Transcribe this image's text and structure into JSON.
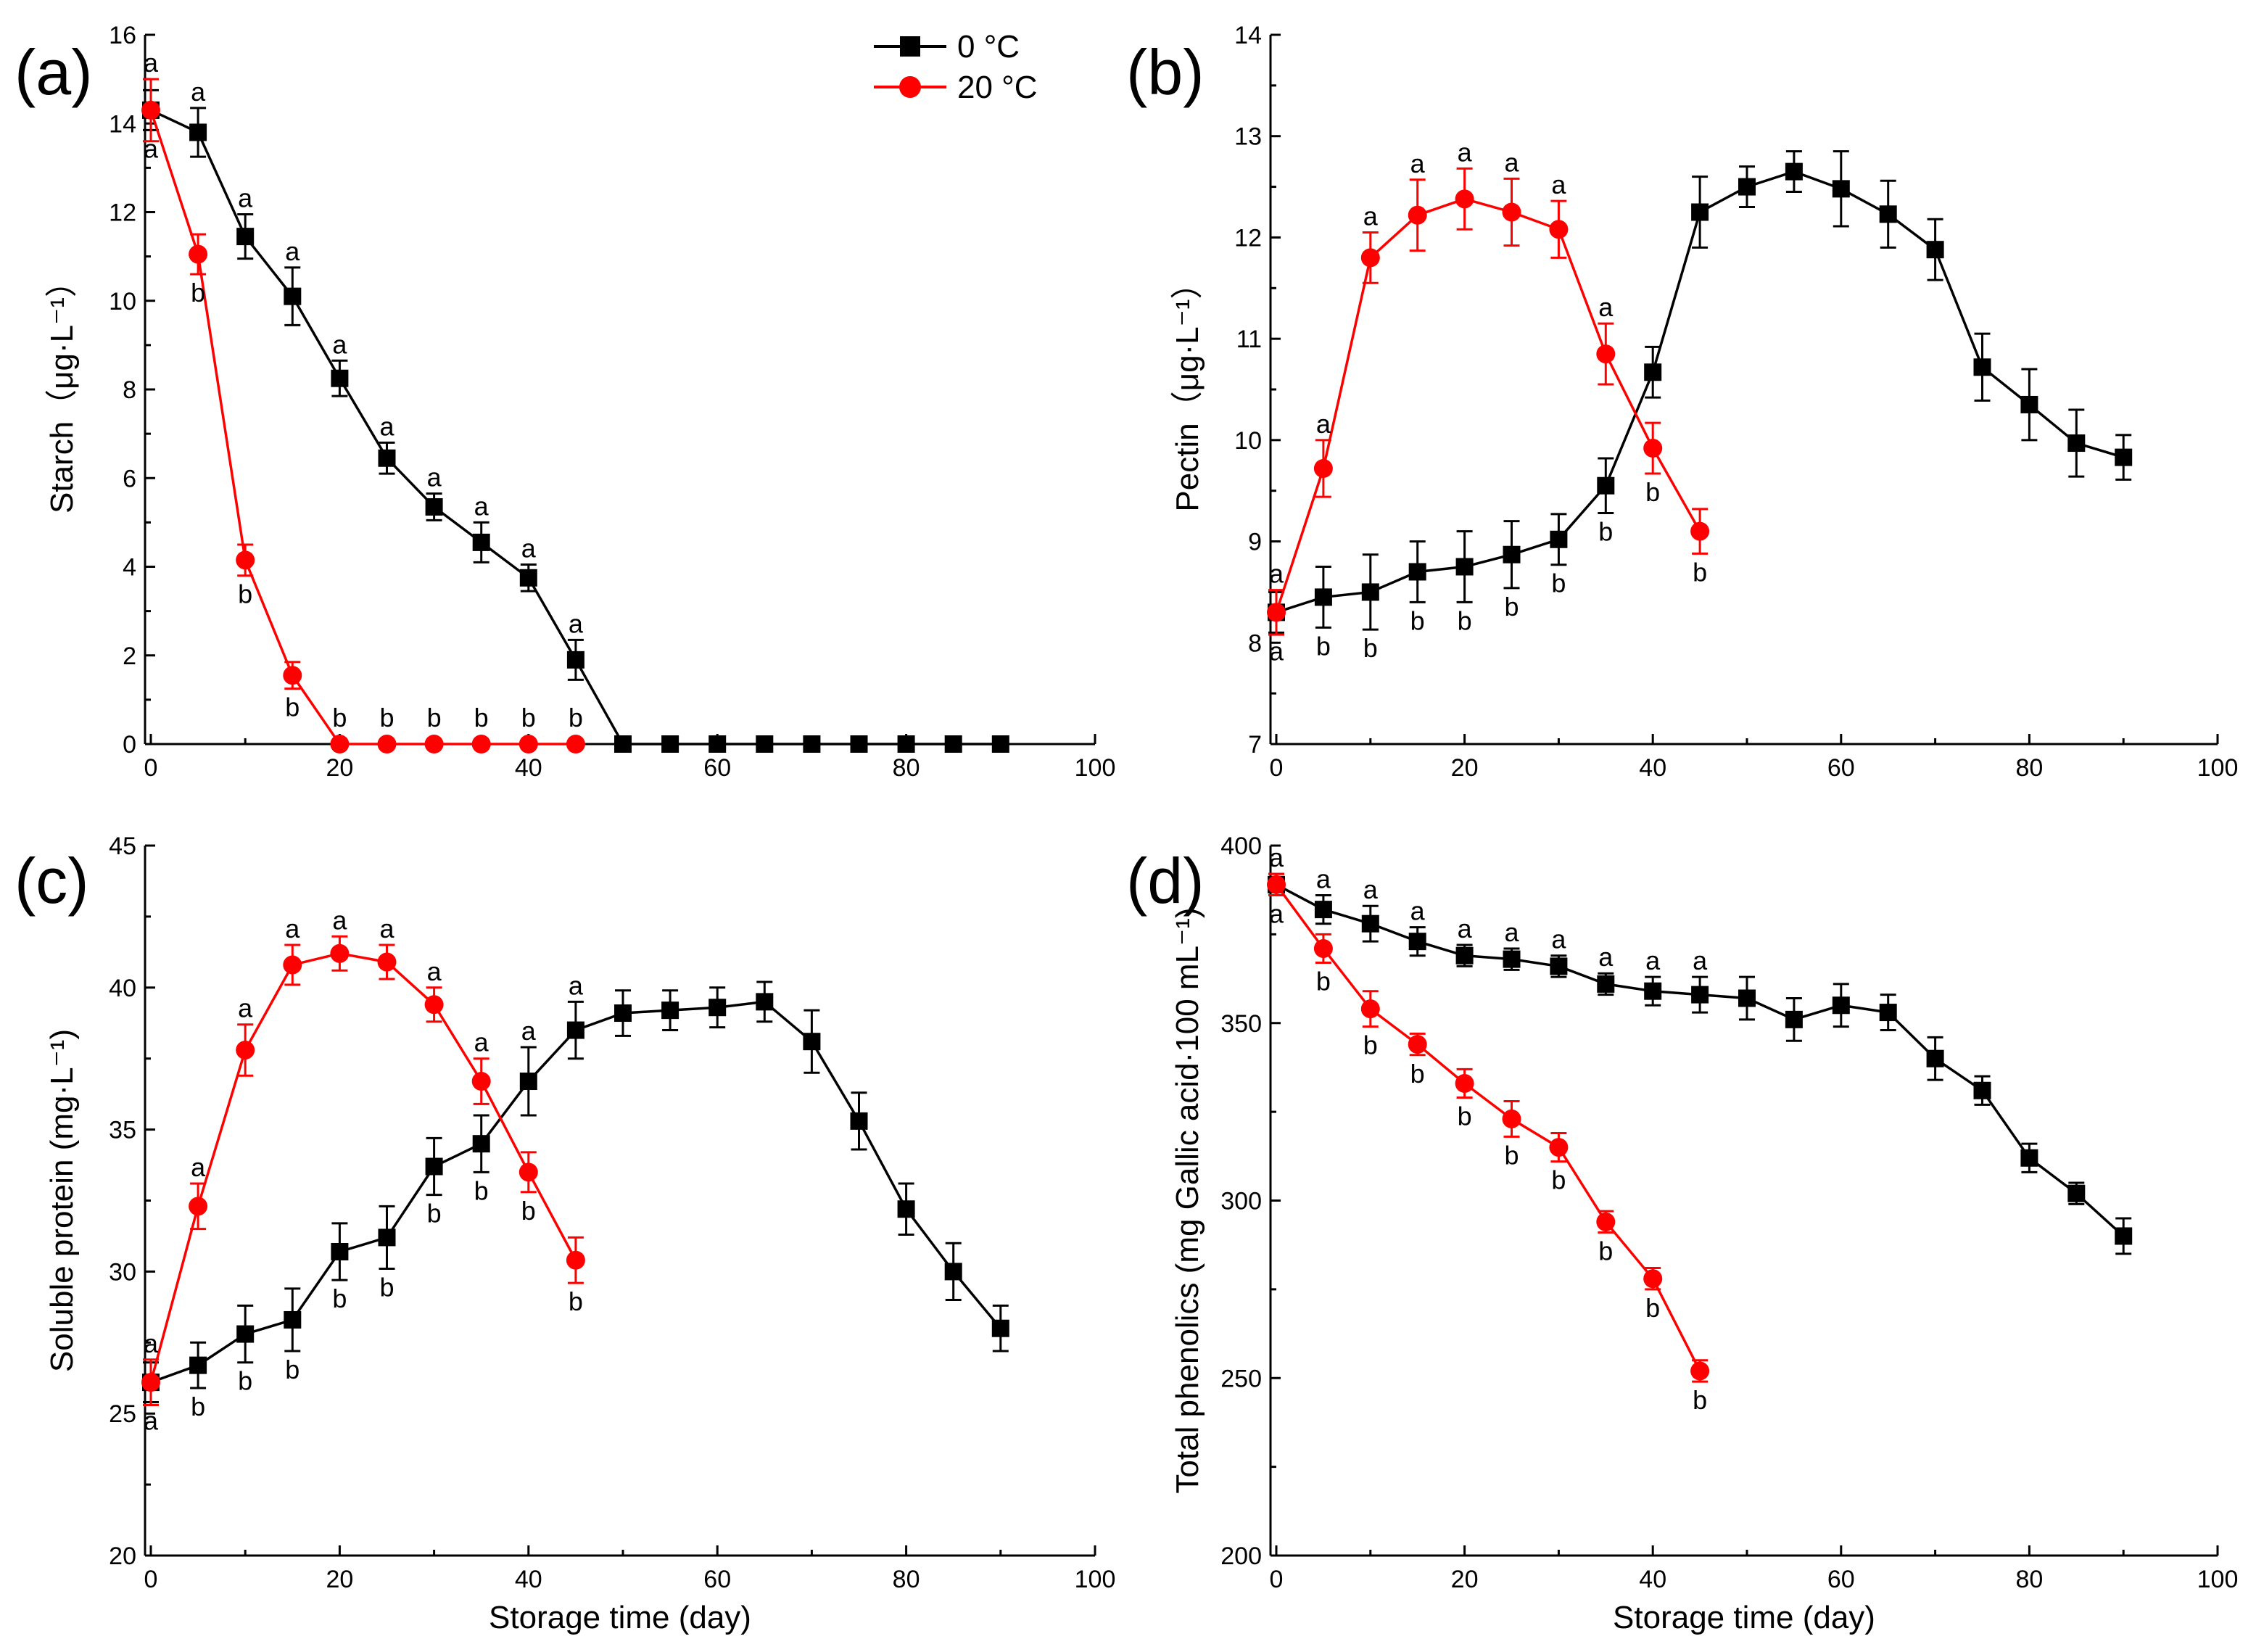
{
  "figure": {
    "legend": [
      {
        "label": "0  °C",
        "color": "#000000",
        "marker": "square"
      },
      {
        "label": "20  °C",
        "color": "#ff0000",
        "marker": "circle"
      }
    ]
  },
  "chart_data": [
    {
      "type": "line",
      "panel": "(a)",
      "ylabel": "Starch（μg·L⁻¹）",
      "xlabel": "",
      "xlim": [
        0,
        100
      ],
      "ylim": [
        0,
        16
      ],
      "xticks": [
        0,
        20,
        40,
        60,
        80,
        100
      ],
      "yticks": [
        0,
        2,
        4,
        6,
        8,
        10,
        12,
        14,
        16
      ],
      "series": [
        {
          "name": "0 °C",
          "color": "#000000",
          "marker": "square",
          "x": [
            0,
            5,
            10,
            15,
            20,
            25,
            30,
            35,
            40,
            45,
            50,
            55,
            60,
            65,
            70,
            75,
            80,
            85,
            90
          ],
          "y": [
            14.3,
            13.8,
            11.45,
            10.1,
            8.25,
            6.45,
            5.35,
            4.55,
            3.75,
            1.9,
            0,
            0,
            0,
            0,
            0,
            0,
            0,
            0,
            0
          ],
          "err": [
            0.45,
            0.55,
            0.5,
            0.65,
            0.4,
            0.35,
            0.3,
            0.45,
            0.3,
            0.45,
            0,
            0,
            0,
            0,
            0,
            0,
            0,
            0,
            0
          ],
          "sig": [
            "a",
            "a",
            "a",
            "a",
            "a",
            "a",
            "a",
            "a",
            "a",
            "a",
            "",
            "",
            "",
            "",
            "",
            "",
            "",
            "",
            ""
          ]
        },
        {
          "name": "20 °C",
          "color": "#ff0000",
          "marker": "circle",
          "x": [
            0,
            5,
            10,
            15,
            20,
            25,
            30,
            35,
            40,
            45
          ],
          "y": [
            14.3,
            11.05,
            4.15,
            1.55,
            0,
            0,
            0,
            0,
            0,
            0
          ],
          "err": [
            0.7,
            0.45,
            0.35,
            0.3,
            0,
            0,
            0,
            0,
            0,
            0
          ],
          "sig": [
            "a",
            "b",
            "b",
            "b",
            "b",
            "b",
            "b",
            "b",
            "b",
            "b"
          ]
        }
      ]
    },
    {
      "type": "line",
      "panel": "(b)",
      "ylabel": "Pectin（μg·L⁻¹）",
      "xlabel": "",
      "xlim": [
        0,
        100
      ],
      "ylim": [
        7,
        14
      ],
      "xticks": [
        0,
        20,
        40,
        60,
        80,
        100
      ],
      "yticks": [
        7,
        8,
        9,
        10,
        11,
        12,
        13,
        14
      ],
      "series": [
        {
          "name": "0 °C",
          "color": "#000000",
          "marker": "square",
          "x": [
            0,
            5,
            10,
            15,
            20,
            25,
            30,
            35,
            40,
            45,
            50,
            55,
            60,
            65,
            70,
            75,
            80,
            85,
            90
          ],
          "y": [
            8.3,
            8.45,
            8.5,
            8.7,
            8.75,
            8.87,
            9.02,
            9.55,
            10.67,
            12.25,
            12.5,
            12.65,
            12.48,
            12.23,
            11.88,
            10.72,
            10.35,
            9.97,
            9.83
          ],
          "err": [
            0.2,
            0.3,
            0.37,
            0.3,
            0.35,
            0.33,
            0.25,
            0.27,
            0.25,
            0.35,
            0.2,
            0.2,
            0.37,
            0.33,
            0.3,
            0.33,
            0.35,
            0.33,
            0.22
          ],
          "sig": [
            "a",
            "b",
            "b",
            "b",
            "b",
            "b",
            "b",
            "b",
            "",
            "",
            "",
            "",
            "",
            "",
            "",
            "",
            "",
            "",
            ""
          ]
        },
        {
          "name": "20 °C",
          "color": "#ff0000",
          "marker": "circle",
          "x": [
            0,
            5,
            10,
            15,
            20,
            25,
            30,
            35,
            40,
            45
          ],
          "y": [
            8.3,
            9.72,
            11.8,
            12.22,
            12.38,
            12.25,
            12.08,
            10.85,
            9.92,
            9.1
          ],
          "err": [
            0.22,
            0.28,
            0.25,
            0.35,
            0.3,
            0.33,
            0.28,
            0.3,
            0.25,
            0.22
          ],
          "sig": [
            "a",
            "a",
            "a",
            "a",
            "a",
            "a",
            "a",
            "a",
            "b",
            "b"
          ]
        }
      ]
    },
    {
      "type": "line",
      "panel": "(c)",
      "ylabel": "Soluble protein (mg·L⁻¹)",
      "xlabel": "Storage time (day)",
      "xlim": [
        0,
        100
      ],
      "ylim": [
        20,
        45
      ],
      "xticks": [
        0,
        20,
        40,
        60,
        80,
        100
      ],
      "yticks": [
        20,
        25,
        30,
        35,
        40,
        45
      ],
      "series": [
        {
          "name": "0 °C",
          "color": "#000000",
          "marker": "square",
          "x": [
            0,
            5,
            10,
            15,
            20,
            25,
            30,
            35,
            40,
            45,
            50,
            55,
            60,
            65,
            70,
            75,
            80,
            85,
            90
          ],
          "y": [
            26.1,
            26.7,
            27.8,
            28.3,
            30.7,
            31.2,
            33.7,
            34.5,
            36.7,
            38.5,
            39.1,
            39.2,
            39.3,
            39.5,
            38.1,
            35.3,
            32.2,
            30.0,
            28.0
          ],
          "err": [
            0.7,
            0.8,
            1.0,
            1.1,
            1.0,
            1.1,
            1.0,
            1.0,
            1.2,
            1.0,
            0.8,
            0.7,
            0.7,
            0.7,
            1.1,
            1.0,
            0.9,
            1.0,
            0.8
          ],
          "sig": [
            "a",
            "b",
            "b",
            "b",
            "b",
            "b",
            "b",
            "b",
            "a",
            "a",
            "",
            "",
            "",
            "",
            "",
            "",
            "",
            "",
            ""
          ]
        },
        {
          "name": "20 °C",
          "color": "#ff0000",
          "marker": "circle",
          "x": [
            0,
            5,
            10,
            15,
            20,
            25,
            30,
            35,
            40,
            45
          ],
          "y": [
            26.1,
            32.3,
            37.8,
            40.8,
            41.2,
            40.9,
            39.4,
            36.7,
            33.5,
            30.4
          ],
          "err": [
            0.8,
            0.8,
            0.9,
            0.7,
            0.6,
            0.6,
            0.6,
            0.8,
            0.7,
            0.8
          ],
          "sig": [
            "a",
            "a",
            "a",
            "a",
            "a",
            "a",
            "a",
            "a",
            "b",
            "b"
          ]
        }
      ]
    },
    {
      "type": "line",
      "panel": "(d)",
      "ylabel": "Total phenolics (mg Gallic acid·100 mL⁻¹)",
      "xlabel": "Storage time (day)",
      "xlim": [
        0,
        100
      ],
      "ylim": [
        200,
        400
      ],
      "xticks": [
        0,
        20,
        40,
        60,
        80,
        100
      ],
      "yticks": [
        200,
        250,
        300,
        350,
        400
      ],
      "series": [
        {
          "name": "0 °C",
          "color": "#000000",
          "marker": "square",
          "x": [
            0,
            5,
            10,
            15,
            20,
            25,
            30,
            35,
            40,
            45,
            50,
            55,
            60,
            65,
            70,
            75,
            80,
            85,
            90
          ],
          "y": [
            389,
            382,
            378,
            373,
            369,
            368,
            366,
            361,
            359,
            358,
            357,
            351,
            355,
            353,
            340,
            331,
            312,
            302,
            290
          ],
          "err": [
            3,
            4,
            5,
            4,
            3,
            3,
            3,
            3,
            4,
            5,
            6,
            6,
            6,
            5,
            6,
            4,
            4,
            3,
            5
          ],
          "sig": [
            "a",
            "a",
            "a",
            "a",
            "a",
            "a",
            "a",
            "a",
            "a",
            "a",
            "",
            "",
            "",
            "",
            "",
            "",
            "",
            "",
            ""
          ]
        },
        {
          "name": "20 °C",
          "color": "#ff0000",
          "marker": "circle",
          "x": [
            0,
            5,
            10,
            15,
            20,
            25,
            30,
            35,
            40,
            45
          ],
          "y": [
            389,
            371,
            354,
            344,
            333,
            323,
            315,
            294,
            278,
            252
          ],
          "err": [
            3,
            4,
            5,
            3,
            4,
            5,
            4,
            3,
            3,
            3
          ],
          "sig": [
            "a",
            "b",
            "b",
            "b",
            "b",
            "b",
            "b",
            "b",
            "b",
            "b"
          ]
        }
      ]
    }
  ]
}
